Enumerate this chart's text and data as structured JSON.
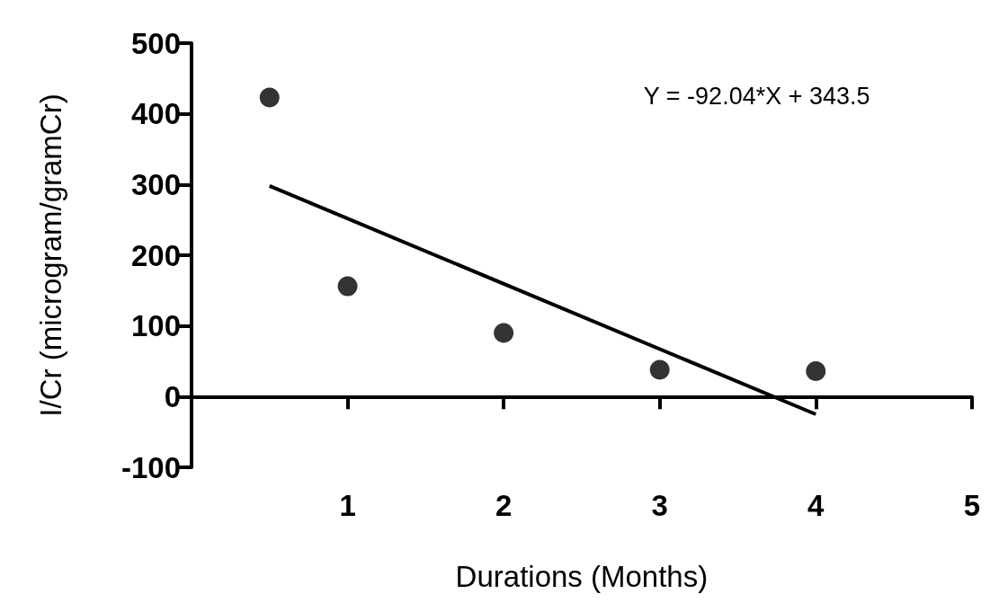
{
  "chart_data": {
    "type": "scatter",
    "xlabel": "Durations (Months)",
    "ylabel": "I/Cr (microgram/gramCr)",
    "annotations": [
      "Y = -92.04*X + 343.5"
    ],
    "series": [
      {
        "color": "#000000",
        "x": [
          0.5,
          1,
          2,
          3,
          4
        ],
        "values": [
          423,
          156,
          90,
          38,
          36
        ],
        "marker": "circle"
      },
      {
        "type": "line",
        "color": "#000000",
        "x": [
          0.5,
          4
        ],
        "values": [
          298,
          -25
        ],
        "marker": "none",
        "line_style": "solid"
      }
    ],
    "xlim": [
      0,
      5
    ],
    "xticks": [
      1,
      2,
      3,
      4,
      5
    ],
    "ylim": [
      -100,
      500
    ],
    "yticks": [
      -100,
      0,
      100,
      200,
      300,
      400,
      500
    ]
  }
}
